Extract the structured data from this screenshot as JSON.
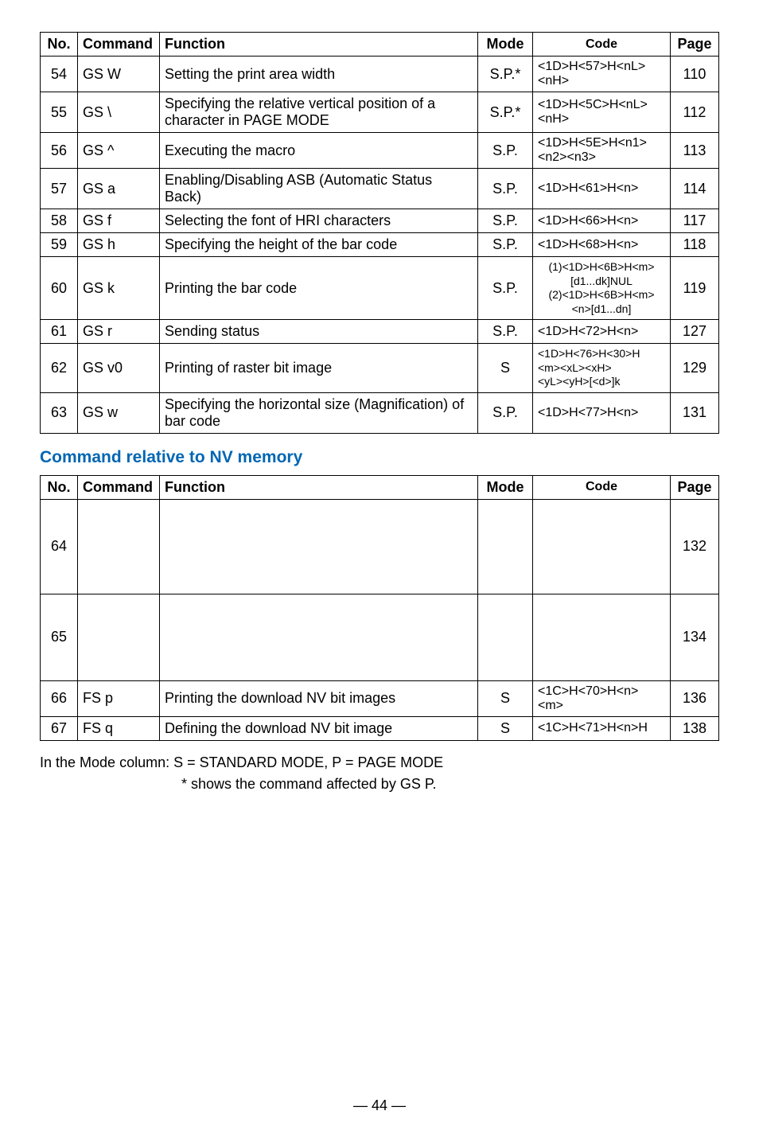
{
  "tables": {
    "main": {
      "headers": {
        "no": "No.",
        "command": "Command",
        "function": "Function",
        "mode": "Mode",
        "code": "Code",
        "page": "Page"
      },
      "rows": [
        {
          "no": "54",
          "cmd": "GS W",
          "func": "Setting the print area width",
          "mode": "S.P.*",
          "code": "<1D>H<57>H<nL>\n<nH>",
          "page": "110"
        },
        {
          "no": "55",
          "cmd": "GS \\",
          "func": "Specifying the relative vertical position of a character in PAGE MODE",
          "mode": "S.P.*",
          "code": "<1D>H<5C>H<nL>\n<nH>",
          "page": "112"
        },
        {
          "no": "56",
          "cmd": "GS ^",
          "func": "Executing the macro",
          "mode": "S.P.",
          "code": "<1D>H<5E>H<n1>\n<n2><n3>",
          "page": "113"
        },
        {
          "no": "57",
          "cmd": "GS a",
          "func": "Enabling/Disabling ASB (Automatic Status Back)",
          "mode": "S.P.",
          "code": "<1D>H<61>H<n>",
          "page": "114"
        },
        {
          "no": "58",
          "cmd": "GS f",
          "func": "Selecting the font of HRI characters",
          "mode": "S.P.",
          "code": "<1D>H<66>H<n>",
          "page": "117"
        },
        {
          "no": "59",
          "cmd": "GS h",
          "func": "Specifying the height of the bar code",
          "mode": "S.P.",
          "code": "<1D>H<68>H<n>",
          "page": "118"
        },
        {
          "no": "60",
          "cmd": "GS k",
          "func": "Printing the bar code",
          "mode": "S.P.",
          "code": "(1)<1D>H<6B>H<m>\n[d1...dk]NUL\n(2)<1D>H<6B>H<m>\n<n>[d1...dn]",
          "page": "119"
        },
        {
          "no": "61",
          "cmd": "GS r",
          "func": "Sending status",
          "mode": "S.P.",
          "code": "<1D>H<72>H<n>",
          "page": "127"
        },
        {
          "no": "62",
          "cmd": "GS v0",
          "func": "Printing of raster bit image",
          "mode": "S",
          "code": "<1D>H<76>H<30>H\n<m><xL><xH>\n<yL><yH>[<d>]k",
          "page": "129"
        },
        {
          "no": "63",
          "cmd": "GS w",
          "func": "Specifying the horizontal size (Magnification) of bar code",
          "mode": "S.P.",
          "code": "<1D>H<77>H<n>",
          "page": "131"
        }
      ]
    },
    "nv": {
      "title": "Command relative to NV memory",
      "headers": {
        "no": "No.",
        "command": "Command",
        "function": "Function",
        "mode": "Mode",
        "code": "Code",
        "page": "Page"
      },
      "rows": [
        {
          "no": "64",
          "cmd": "",
          "func": "",
          "mode": "",
          "code": "",
          "page": "132"
        },
        {
          "no": "65",
          "cmd": "",
          "func": "",
          "mode": "",
          "code": "",
          "page": "134"
        },
        {
          "no": "66",
          "cmd": "FS p",
          "func": "Printing the download NV bit images",
          "mode": "S",
          "code": "<1C>H<70>H<n>\n<m>",
          "page": "136"
        },
        {
          "no": "67",
          "cmd": "FS q",
          "func": "Defining the download NV bit image",
          "mode": "S",
          "code": "<1C>H<71>H<n>H",
          "page": "138"
        }
      ]
    }
  },
  "footnote": {
    "line1": "In the Mode column:  S = STANDARD MODE, P = PAGE MODE",
    "line2": "* shows the command affected by GS P."
  },
  "pagenum": "— 44 —"
}
